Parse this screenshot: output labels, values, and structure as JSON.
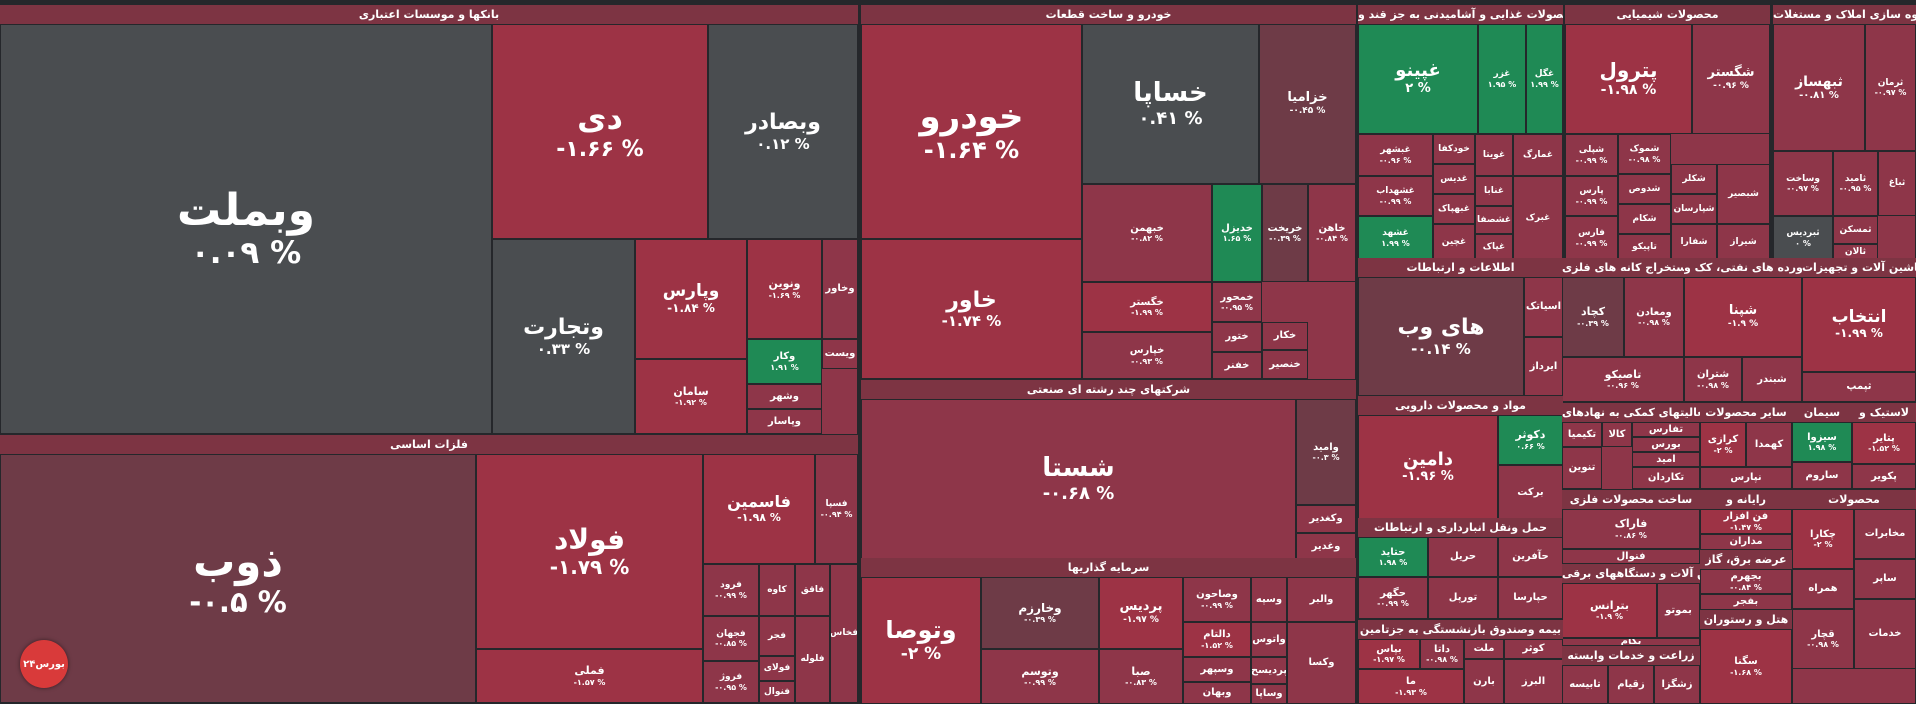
{
  "colors": {
    "strong_neg": "#9d3345",
    "neg": "#8e3649",
    "mid_neg": "#6e3b47",
    "neutral": "#4a4d50",
    "pos": "#1f8a55",
    "header": "#7d3443"
  },
  "logo_text": "بورس۲۴",
  "chart_data": {
    "type": "treemap",
    "sectors": [
      {
        "name": "بانکها و موسسات اعتباری",
        "items": [
          {
            "name": "وبملت",
            "change": "۰.۰۹ %"
          },
          {
            "name": "دی",
            "change": "-۱.۶۶ %"
          },
          {
            "name": "وبصادر",
            "change": "۰.۱۲ %"
          },
          {
            "name": "وتجارت",
            "change": "۰.۳۳ %"
          },
          {
            "name": "وپارس",
            "change": "-۱.۸۴ %"
          },
          {
            "name": "ونوین",
            "change": "-۱.۶۹ %"
          },
          {
            "name": "وخاور",
            "change": ""
          },
          {
            "name": "سامان",
            "change": "-۱.۹۲ %"
          },
          {
            "name": "وکار",
            "change": "۱.۹۱ %"
          },
          {
            "name": "ویست",
            "change": ""
          },
          {
            "name": "وشهر",
            "change": ""
          },
          {
            "name": "وپاسار",
            "change": ""
          }
        ]
      },
      {
        "name": "خودرو و ساخت قطعات",
        "items": [
          {
            "name": "خودرو",
            "change": "-۱.۶۴ %"
          },
          {
            "name": "خساپا",
            "change": "۰.۴۱ %"
          },
          {
            "name": "خزامیا",
            "change": "-۰.۴۵ %"
          },
          {
            "name": "خاور",
            "change": "-۱.۷۴ %"
          },
          {
            "name": "خبهمن",
            "change": "-۰.۸۲ %"
          },
          {
            "name": "خدیزل",
            "change": "۱.۶۵ %"
          },
          {
            "name": "خریخت",
            "change": "-۰.۳۹ %"
          },
          {
            "name": "خاهن",
            "change": "-۰.۸۴ %"
          },
          {
            "name": "خگستر",
            "change": "-۱.۹۹ %"
          },
          {
            "name": "خمحور",
            "change": "-۰.۹۵ %"
          },
          {
            "name": "خپارس",
            "change": "-۰.۹۳ %"
          },
          {
            "name": "ختور",
            "change": ""
          },
          {
            "name": "خکار",
            "change": ""
          },
          {
            "name": "خفنر",
            "change": ""
          },
          {
            "name": "خنصیر",
            "change": ""
          }
        ]
      },
      {
        "name": "محصولات غذایی و آشامیدنی به جز قند و",
        "items": [
          {
            "name": "غپینو",
            "change": "۲ %"
          },
          {
            "name": "غزر",
            "change": "۱.۹۵ %"
          },
          {
            "name": "غگل",
            "change": "۱.۹۹ %"
          },
          {
            "name": "غبشهر",
            "change": "-۰.۹۶ %"
          },
          {
            "name": "خودکفا",
            "change": ""
          },
          {
            "name": "غویتا",
            "change": ""
          },
          {
            "name": "غمارگ",
            "change": ""
          },
          {
            "name": "غدیس",
            "change": ""
          },
          {
            "name": "غشهداب",
            "change": "-۰.۹۹ %"
          },
          {
            "name": "غبهپاک",
            "change": ""
          },
          {
            "name": "غنابا",
            "change": ""
          },
          {
            "name": "غشهد",
            "change": "۱.۹۹ %"
          },
          {
            "name": "غچین",
            "change": ""
          },
          {
            "name": "غشصفا",
            "change": ""
          },
          {
            "name": "غپاک",
            "change": ""
          },
          {
            "name": "غبرک",
            "change": ""
          }
        ]
      },
      {
        "name": "محصولات شیمیایی",
        "items": [
          {
            "name": "پترول",
            "change": "-۱.۹۸ %"
          },
          {
            "name": "شگستر",
            "change": "-۰.۹۶ %"
          },
          {
            "name": "شپلی",
            "change": "-۰.۹۹ %"
          },
          {
            "name": "شموک",
            "change": "-۰.۹۸ %"
          },
          {
            "name": "شدوص",
            "change": ""
          },
          {
            "name": "شکام",
            "change": ""
          },
          {
            "name": "پارس",
            "change": "-۰.۹۹ %"
          },
          {
            "name": "شکلر",
            "change": ""
          },
          {
            "name": "شپارسان",
            "change": ""
          },
          {
            "name": "تاپیکو",
            "change": ""
          },
          {
            "name": "شفارا",
            "change": ""
          },
          {
            "name": "فارس",
            "change": "-۰.۹۹ %"
          },
          {
            "name": "شاروم",
            "change": ""
          },
          {
            "name": "شیراز",
            "change": ""
          },
          {
            "name": "شبصیر",
            "change": ""
          }
        ]
      },
      {
        "name": "انبوه سازی املاک و مستغلات",
        "items": [
          {
            "name": "ثبهساز",
            "change": "-۰.۸۱ %"
          },
          {
            "name": "ثرمان",
            "change": "-۰.۹۷ %"
          },
          {
            "name": "وساخت",
            "change": "-۰.۹۷ %"
          },
          {
            "name": "ثامید",
            "change": "-۰.۹۵ %"
          },
          {
            "name": "ثباغ",
            "change": ""
          },
          {
            "name": "ثبردیس",
            "change": "۰ %"
          },
          {
            "name": "ثمسکن",
            "change": ""
          },
          {
            "name": "ثالان",
            "change": ""
          }
        ]
      },
      {
        "name": "فلزات اساسی",
        "items": [
          {
            "name": "ذوب",
            "change": "-۰.۵ %"
          },
          {
            "name": "فولاد",
            "change": "-۱.۷۹ %"
          },
          {
            "name": "فاسمین",
            "change": "-۱.۹۸ %"
          },
          {
            "name": "فسپا",
            "change": "-۰.۹۴ %"
          },
          {
            "name": "فرود",
            "change": "-۰.۹۹ %"
          },
          {
            "name": "کاوه",
            "change": ""
          },
          {
            "name": "فاقق",
            "change": ""
          },
          {
            "name": "فجهان",
            "change": "-۰.۸۵ %"
          },
          {
            "name": "فجر",
            "change": ""
          },
          {
            "name": "فروژ",
            "change": "-۰.۹۵ %"
          },
          {
            "name": "فولای",
            "change": ""
          },
          {
            "name": "فنوال",
            "change": ""
          },
          {
            "name": "فخاس",
            "change": ""
          },
          {
            "name": "فملی",
            "change": "-۱.۵۷ %"
          },
          {
            "name": "فلوله",
            "change": ""
          }
        ]
      },
      {
        "name": "شرکتهای چند رشته ای صنعتی",
        "items": [
          {
            "name": "شستا",
            "change": "-۰.۶۸ %"
          },
          {
            "name": "وامید",
            "change": "-۰.۳ %"
          },
          {
            "name": "وکغدیر",
            "change": ""
          },
          {
            "name": "وغدیر",
            "change": ""
          }
        ]
      },
      {
        "name": "سرمایه گذاریها",
        "items": [
          {
            "name": "وتوصا",
            "change": "-۲ %"
          },
          {
            "name": "وخارزم",
            "change": "-۰.۳۹ %"
          },
          {
            "name": "پردیس",
            "change": "-۱.۹۷ %"
          },
          {
            "name": "وصاحون",
            "change": "-۰.۹۹ %"
          },
          {
            "name": "وسپه",
            "change": ""
          },
          {
            "name": "والبر",
            "change": ""
          },
          {
            "name": "دالتام",
            "change": "-۱.۵۲ %"
          },
          {
            "name": "واتوس",
            "change": ""
          },
          {
            "name": "وتوسم",
            "change": "-۰.۹۹ %"
          },
          {
            "name": "وسپهر",
            "change": ""
          },
          {
            "name": "پردیسح",
            "change": ""
          },
          {
            "name": "صبا",
            "change": "-۰.۸۳ %"
          },
          {
            "name": "وساپا",
            "change": ""
          },
          {
            "name": "وبهان",
            "change": ""
          },
          {
            "name": "وکسا",
            "change": ""
          }
        ]
      },
      {
        "name": "اطلاعات و ارتباطات",
        "items": [
          {
            "name": "های وب",
            "change": "-۰.۱۴ %"
          },
          {
            "name": "اسیاتک",
            "change": ""
          },
          {
            "name": "ایرداز",
            "change": ""
          }
        ]
      },
      {
        "name": "استخراج کانه های فلزی",
        "items": [
          {
            "name": "کچاد",
            "change": "-۰.۳۹ %"
          },
          {
            "name": "ومعادن",
            "change": "-۰.۹۸ %"
          },
          {
            "name": "تاصیکو",
            "change": "-۰.۹۶ %"
          }
        ]
      },
      {
        "name": "فراورده های نفتی، کک و",
        "items": [
          {
            "name": "شپنا",
            "change": "-۱.۹ %"
          },
          {
            "name": "شتران",
            "change": "-۰.۹۸ %"
          },
          {
            "name": "شبندر",
            "change": ""
          }
        ]
      },
      {
        "name": "ماشین آلات و تجهیزات",
        "items": [
          {
            "name": "انتخاب",
            "change": "-۱.۹۹ %"
          },
          {
            "name": "ثپمپ",
            "change": ""
          }
        ]
      },
      {
        "name": "مواد و محصولات دارویی",
        "items": [
          {
            "name": "دامین",
            "change": "-۱.۹۶ %"
          },
          {
            "name": "دکوثر",
            "change": "۰.۶۶ %"
          },
          {
            "name": "برکت",
            "change": ""
          }
        ]
      },
      {
        "name": "فعالیتهای کمکی به نهادهای",
        "items": [
          {
            "name": "تکیمیا",
            "change": ""
          },
          {
            "name": "کالا",
            "change": ""
          },
          {
            "name": "تفارس",
            "change": ""
          },
          {
            "name": "بورس",
            "change": ""
          },
          {
            "name": "امید",
            "change": ""
          },
          {
            "name": "تکاردان",
            "change": ""
          },
          {
            "name": "تنوین",
            "change": ""
          }
        ]
      },
      {
        "name": "سایر محصولات",
        "items": [
          {
            "name": "کرازی",
            "change": "-۲ %"
          },
          {
            "name": "کهمدا",
            "change": ""
          },
          {
            "name": "نپارس",
            "change": ""
          }
        ]
      },
      {
        "name": "سیمان",
        "items": [
          {
            "name": "سیزوا",
            "change": "۱.۹۸ %"
          },
          {
            "name": "ساروم",
            "change": ""
          }
        ]
      },
      {
        "name": "لاستیک و",
        "items": [
          {
            "name": "پتایر",
            "change": "-۱.۵۲ %"
          },
          {
            "name": "پکویر",
            "change": ""
          }
        ]
      },
      {
        "name": "حمل ونقل انبارداری و ارتباطات",
        "items": [
          {
            "name": "حتاید",
            "change": "۱.۹۸ %"
          },
          {
            "name": "حریل",
            "change": ""
          },
          {
            "name": "حآفرین",
            "change": ""
          },
          {
            "name": "تورپل",
            "change": ""
          },
          {
            "name": "حگهر",
            "change": "-۰.۹۹ %"
          },
          {
            "name": "حکشتی",
            "change": ""
          },
          {
            "name": "حپارسا",
            "change": ""
          }
        ]
      },
      {
        "name": "ساخت محصولات فلزی",
        "items": [
          {
            "name": "فاراک",
            "change": "-۰.۸۶ %"
          },
          {
            "name": "فنوال",
            "change": ""
          }
        ]
      },
      {
        "name": "ماشین آلات و دستگاههای برقی",
        "items": [
          {
            "name": "بترانس",
            "change": "-۱.۹ %"
          },
          {
            "name": "بموتو",
            "change": ""
          },
          {
            "name": "بکام",
            "change": ""
          }
        ]
      },
      {
        "name": "رایانه و",
        "items": [
          {
            "name": "فن افزار",
            "change": "-۱.۴۷ %"
          },
          {
            "name": "مداران",
            "change": ""
          }
        ]
      },
      {
        "name": "عرضه برق، گاز",
        "items": [
          {
            "name": "بجهرم",
            "change": "-۰.۸۴ %"
          },
          {
            "name": "بفجر",
            "change": ""
          }
        ]
      },
      {
        "name": "بیمه وصندوق بازنشستگی به جزتامین",
        "items": [
          {
            "name": "بپاس",
            "change": "-۱.۹۷ %"
          },
          {
            "name": "داتا",
            "change": "-۰.۹۸ %"
          },
          {
            "name": "ملت",
            "change": ""
          },
          {
            "name": "کوثر",
            "change": ""
          },
          {
            "name": "بارن",
            "change": ""
          },
          {
            "name": "البرز",
            "change": ""
          },
          {
            "name": "ما",
            "change": "-۱.۹۳ %"
          }
        ]
      },
      {
        "name": "زراعت و خدمات وابسته",
        "items": [
          {
            "name": "تابیسه",
            "change": ""
          },
          {
            "name": "زقیام",
            "change": ""
          },
          {
            "name": "زشگزا",
            "change": ""
          }
        ]
      },
      {
        "name": "هتل و رستوران",
        "items": [
          {
            "name": "سگنا",
            "change": "-۱.۶۸ %"
          }
        ]
      },
      {
        "name": "محصولات",
        "items": [
          {
            "name": "چکارا",
            "change": "-۲ %"
          },
          {
            "name": "مخابرات",
            "change": ""
          },
          {
            "name": "همراه",
            "change": ""
          },
          {
            "name": "ساپر",
            "change": ""
          },
          {
            "name": "قچار",
            "change": "-۰.۹۸ %"
          },
          {
            "name": "خدمات",
            "change": ""
          }
        ]
      }
    ]
  }
}
